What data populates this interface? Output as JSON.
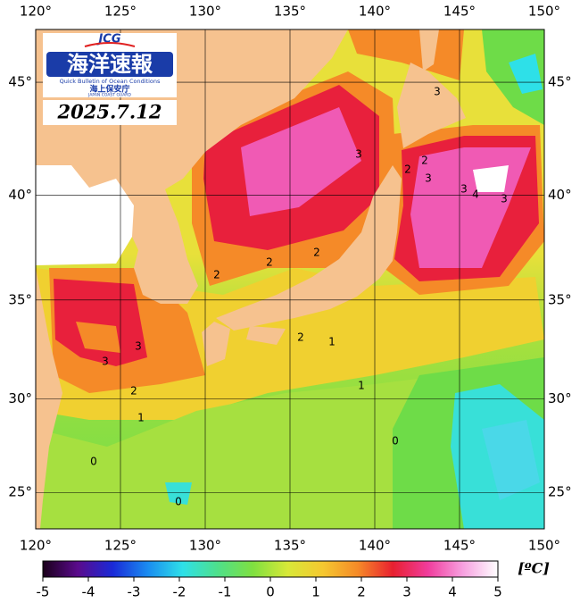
{
  "map": {
    "lon_range": [
      120,
      150
    ],
    "lat_range": [
      23,
      47.2
    ],
    "lon_ticks": [
      {
        "value": 120,
        "label": "120°"
      },
      {
        "value": 125,
        "label": "125°"
      },
      {
        "value": 130,
        "label": "130°"
      },
      {
        "value": 135,
        "label": "135°"
      },
      {
        "value": 140,
        "label": "140°"
      },
      {
        "value": 145,
        "label": "145°"
      },
      {
        "value": 150,
        "label": "150°"
      }
    ],
    "lat_ticks": [
      {
        "value": 25,
        "label": "25°"
      },
      {
        "value": 30,
        "label": "30°"
      },
      {
        "value": 35,
        "label": "35°"
      },
      {
        "value": 40,
        "label": "40°"
      },
      {
        "value": 45,
        "label": "45°"
      }
    ],
    "contour_labels": [
      3,
      3,
      2,
      3,
      2,
      3,
      4,
      3,
      2,
      2,
      2,
      3,
      3,
      2,
      1,
      1,
      2,
      1,
      0,
      0,
      0
    ]
  },
  "logo": {
    "acronym": "JCG",
    "title": "海洋速報",
    "subtitle": "Quick Bulletin of Ocean Conditions",
    "agency": "海上保安庁",
    "agency_en": "JAPAN COAST GUARD"
  },
  "date": "2025.7.12",
  "colorbar": {
    "range": [
      -5,
      5
    ],
    "ticks": [
      -5,
      -4,
      -3,
      -2,
      -1,
      0,
      1,
      2,
      3,
      4,
      5
    ],
    "unit": "[ºC]",
    "colors": [
      "#1a001a",
      "#5a0a8c",
      "#1a2ad8",
      "#1a8cf0",
      "#2ee0e8",
      "#4ee08a",
      "#7fe040",
      "#d8e838",
      "#f5c830",
      "#f58a28",
      "#e82030",
      "#f03c9c",
      "#f7a0e0",
      "#ffffff"
    ]
  }
}
